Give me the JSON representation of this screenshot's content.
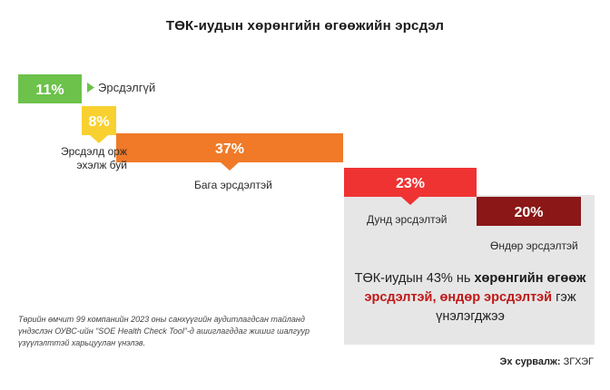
{
  "title": "ТӨК-иудын хөрөнгийн өгөөжийн эрсдэл",
  "chart_data": {
    "type": "bar",
    "categories": [
      "Эрсдэлгүй",
      "Эрсдэлд орж эхэлж буй",
      "Бага эрсдэлтэй",
      "Дунд эрсдэлтэй",
      "Өндөр эрсдэлтэй"
    ],
    "values": [
      11,
      8,
      37,
      23,
      20
    ],
    "value_labels": [
      "11%",
      "8%",
      "37%",
      "23%",
      "20%"
    ],
    "colors": [
      "#6cc24a",
      "#f8d130",
      "#f07a28",
      "#ef3333",
      "#8b1717"
    ],
    "layout": "stepped waterfall"
  },
  "labels": {
    "no_risk": "Эрсдэлгүй",
    "start_risk": "Эрсдэлд орж эхэлж буй",
    "low": "Бага эрсдэлтэй",
    "mid": "Дунд эрсдэлтэй",
    "high": "Өндөр эрсдэлтэй"
  },
  "summary": {
    "p1": "ТӨК-иудын 43% нь ",
    "p2": "хөрөнгийн өгөөж ",
    "p3": "эрсдэлтэй, өндөр эрсдэлтэй",
    "p4": " гэж үнэлэгджээ"
  },
  "footnote": "Төрийн өмчит 99 компанийн 2023 оны санхүүгийн аудитлагдсан тайланд үндэслэн ОУВС-ийн “SOE Health Check Tool”-д ашиглагддаг жишиг шалгуур үзүүлэлттэй харьцуулан үнэлэв.",
  "source": {
    "label": "Эх сурвалж:",
    "value": "ЗГХЭГ"
  }
}
